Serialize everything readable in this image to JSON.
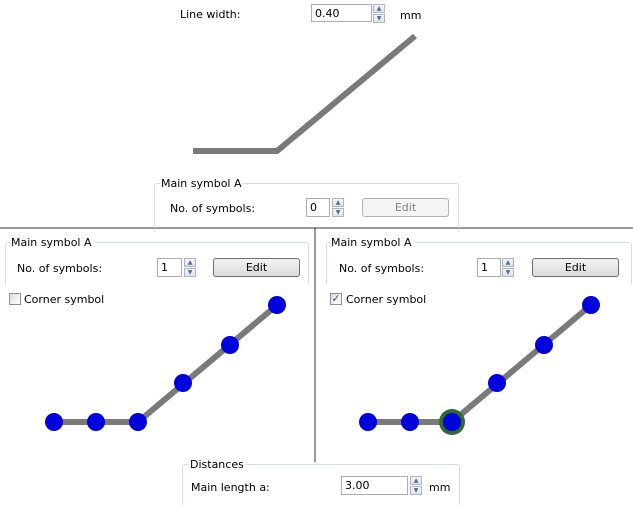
{
  "top": {
    "line_width_label": "Line width:",
    "line_width_value": "0.40",
    "unit": "mm",
    "group_title": "Main symbol A",
    "symbols_label": "No. of symbols:",
    "symbols_value": "0",
    "edit_label": "Edit"
  },
  "left": {
    "group_title": "Main symbol A",
    "symbols_label": "No. of symbols:",
    "symbols_value": "1",
    "edit_label": "Edit",
    "corner_label": "Corner symbol",
    "corner_checked": false
  },
  "right": {
    "group_title": "Main symbol A",
    "symbols_label": "No. of symbols:",
    "symbols_value": "1",
    "edit_label": "Edit",
    "corner_label": "Corner symbol",
    "corner_checked": true
  },
  "distances": {
    "group_title": "Distances",
    "main_length_label": "Main length a:",
    "main_length_value": "3.00",
    "unit": "mm"
  },
  "colors": {
    "line": "#7a7a7a",
    "symbol": "#0000dd",
    "corner_ring": "#2f6b2f"
  }
}
